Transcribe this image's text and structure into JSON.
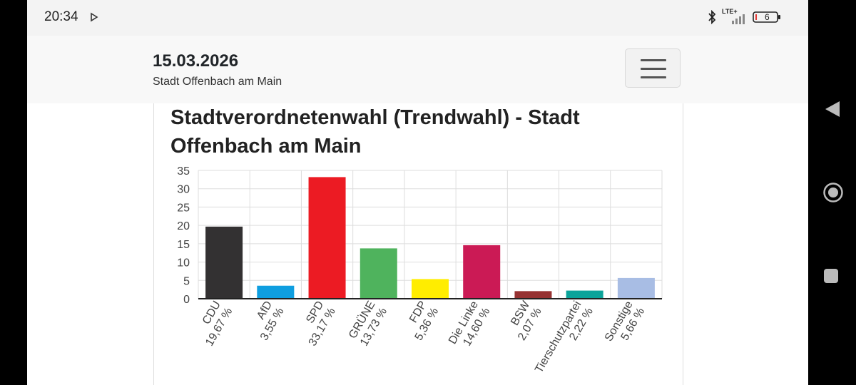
{
  "status_bar": {
    "time": "20:34",
    "network": "LTE+",
    "battery_level": "6",
    "icons": [
      "cast-icon",
      "bluetooth-icon",
      "signal-icon",
      "battery-icon"
    ]
  },
  "header": {
    "date": "15.03.2026",
    "subtitle": "Stadt Offenbach am Main",
    "menu_icon": "hamburger-menu-icon"
  },
  "navigation": {
    "icons": [
      "back-icon",
      "home-icon",
      "recents-icon"
    ]
  },
  "colors": {
    "CDU": "#333132",
    "AfD": "#0e9ee0",
    "SPD": "#ec1b23",
    "GRÜNE": "#4fb35d",
    "FDP": "#ffed00",
    "Die Linke": "#cb1a55",
    "BSW": "#963232",
    "Tierschutzpartei": "#0ba39a",
    "Sonstige": "#a8bde4"
  },
  "chart_data": {
    "type": "bar",
    "title": "Stadtverordnetenwahl (Trendwahl) - Stadt Offenbach am Main",
    "categories": [
      "CDU",
      "AfD",
      "SPD",
      "GRÜNE",
      "FDP",
      "Die Linke",
      "BSW",
      "Tierschutzpartei",
      "Sonstige"
    ],
    "values": [
      19.67,
      3.55,
      33.17,
      13.73,
      5.36,
      14.6,
      2.07,
      2.22,
      5.66
    ],
    "value_labels": [
      "19,67 %",
      "3,55 %",
      "33,17 %",
      "13,73 %",
      "5,36 %",
      "14,60 %",
      "2,07 %",
      "2,22 %",
      "5,66 %"
    ],
    "ylim": [
      0,
      35
    ],
    "yticks": [
      "0",
      "5",
      "10",
      "15",
      "20",
      "25",
      "30",
      "35"
    ],
    "xlabel": "",
    "ylabel": "",
    "grid": true
  }
}
